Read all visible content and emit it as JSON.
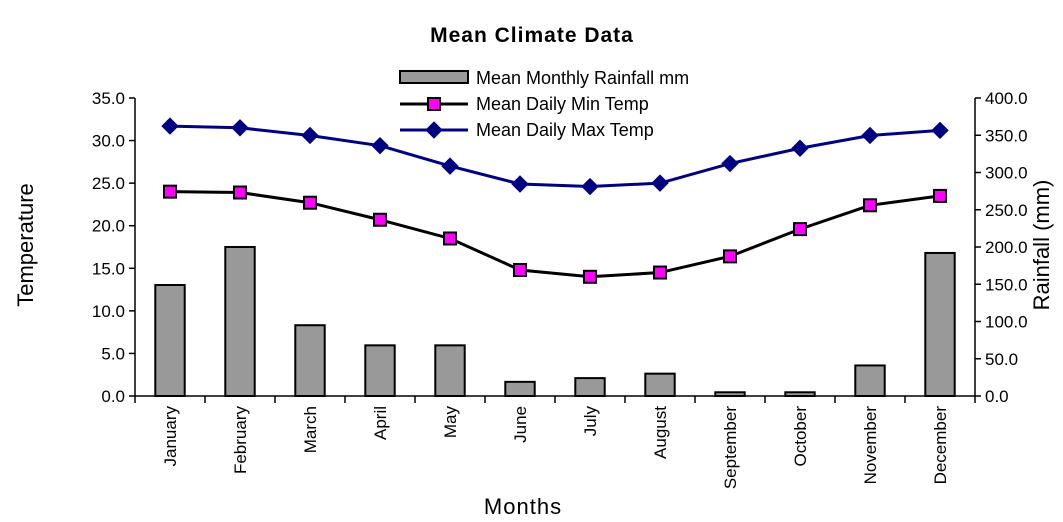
{
  "chart_data": {
    "type": "bar+line",
    "title": "Mean Climate Data",
    "xlabel": "Months",
    "ylabel_left": "Temperature",
    "ylabel_right": "Rainfall (mm)",
    "categories": [
      "January",
      "February",
      "March",
      "April",
      "May",
      "June",
      "July",
      "August",
      "September",
      "October",
      "November",
      "December"
    ],
    "y_left": {
      "min": 0,
      "max": 35,
      "step": 5,
      "ticks": [
        "0.0",
        "5.0",
        "10.0",
        "15.0",
        "20.0",
        "25.0",
        "30.0",
        "35.0"
      ]
    },
    "y_right": {
      "min": 0,
      "max": 400,
      "step": 50,
      "ticks": [
        "0.0",
        "50.0",
        "100.0",
        "150.0",
        "200.0",
        "250.0",
        "300.0",
        "350.0",
        "400.0"
      ]
    },
    "legend_position": "top",
    "series": [
      {
        "name": "Mean Monthly Rainfall mm",
        "type": "bar",
        "axis": "right",
        "color": "#999999",
        "values": [
          149,
          200,
          95,
          68,
          68,
          19,
          24,
          30,
          5,
          5,
          41,
          192
        ]
      },
      {
        "name": "Mean Daily Min Temp",
        "type": "line",
        "axis": "left",
        "color": "#000000",
        "marker": "square",
        "marker_color": "#ff00ff",
        "values": [
          24.0,
          23.9,
          22.7,
          20.7,
          18.5,
          14.8,
          14.0,
          14.5,
          16.4,
          19.6,
          22.4,
          23.5
        ]
      },
      {
        "name": "Mean Daily Max Temp",
        "type": "line",
        "axis": "left",
        "color": "#000080",
        "marker": "diamond",
        "marker_color": "#000080",
        "values": [
          31.7,
          31.5,
          30.6,
          29.4,
          27.0,
          24.9,
          24.6,
          25.0,
          27.3,
          29.1,
          30.6,
          31.2
        ]
      }
    ]
  }
}
